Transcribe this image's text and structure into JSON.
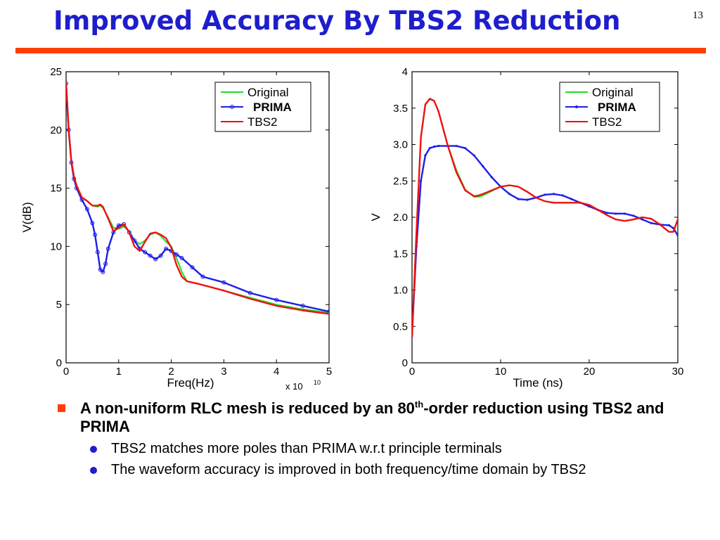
{
  "slide": {
    "title": "Improved Accuracy By TBS2 Reduction",
    "number": "13",
    "accent_color": "#ff3d00",
    "title_color": "#1e1ecc"
  },
  "bullets": {
    "main_pre": "A non-uniform RLC mesh is reduced by an 80",
    "main_sup": "th",
    "main_post": "-order reduction using TBS2 and PRIMA",
    "sub": [
      "TBS2 matches more poles than PRIMA w.r.t principle terminals",
      "The waveform accuracy is improved in both frequency/time domain by TBS2"
    ]
  },
  "chart_data": [
    {
      "type": "line",
      "title": "",
      "xlabel": "Freq(Hz)",
      "ylabel": "V(dB)",
      "x_multiplier": "x 10",
      "x_multiplier_exp": "10",
      "xlim": [
        0,
        5
      ],
      "ylim": [
        0,
        25
      ],
      "xticks": [
        "0",
        "1",
        "2",
        "3",
        "4",
        "5"
      ],
      "yticks": [
        "0",
        "5",
        "10",
        "15",
        "20",
        "25"
      ],
      "legend_position": "top-right",
      "series": [
        {
          "name": "Original",
          "color": "#22dd22",
          "marker": "none",
          "x": [
            0,
            0.05,
            0.1,
            0.15,
            0.2,
            0.3,
            0.4,
            0.5,
            0.6,
            0.65,
            0.7,
            0.8,
            0.9,
            1.0,
            1.1,
            1.2,
            1.3,
            1.4,
            1.5,
            1.6,
            1.7,
            1.8,
            1.9,
            2.0,
            2.1,
            2.2,
            2.3,
            2.5,
            3.0,
            3.5,
            4.0,
            4.5,
            5.0
          ],
          "y": [
            24,
            20,
            17.3,
            16,
            15.2,
            14.2,
            13.9,
            13.5,
            13.4,
            13.5,
            13.3,
            12.5,
            11.6,
            11.5,
            11.7,
            11.3,
            10.5,
            10.2,
            10.5,
            11.0,
            11.2,
            10.9,
            10.4,
            10.0,
            9.0,
            7.8,
            7.0,
            6.8,
            6.2,
            5.6,
            5.0,
            4.6,
            4.3
          ]
        },
        {
          "name": "PRIMA",
          "color": "#1e1ee6",
          "marker": "circle",
          "x": [
            0,
            0.05,
            0.1,
            0.15,
            0.2,
            0.3,
            0.4,
            0.5,
            0.55,
            0.6,
            0.65,
            0.7,
            0.75,
            0.8,
            0.9,
            1.0,
            1.1,
            1.2,
            1.3,
            1.4,
            1.5,
            1.6,
            1.7,
            1.8,
            1.9,
            2.0,
            2.1,
            2.2,
            2.4,
            2.6,
            3.0,
            3.5,
            4.0,
            4.5,
            5.0
          ],
          "y": [
            24,
            20,
            17.2,
            15.8,
            15.0,
            14.0,
            13.2,
            12.0,
            11.0,
            9.5,
            8.0,
            7.8,
            8.5,
            9.8,
            11.2,
            11.8,
            11.9,
            11.2,
            10.5,
            9.8,
            9.5,
            9.2,
            8.9,
            9.2,
            9.8,
            9.6,
            9.3,
            9.0,
            8.2,
            7.4,
            6.9,
            6.0,
            5.4,
            4.9,
            4.4
          ]
        },
        {
          "name": "TBS2",
          "color": "#ee1111",
          "marker": "none",
          "x": [
            0,
            0.05,
            0.1,
            0.15,
            0.2,
            0.3,
            0.4,
            0.5,
            0.6,
            0.65,
            0.7,
            0.8,
            0.9,
            1.0,
            1.1,
            1.2,
            1.3,
            1.4,
            1.5,
            1.6,
            1.7,
            1.8,
            1.9,
            2.0,
            2.1,
            2.2,
            2.3,
            2.5,
            3.0,
            3.5,
            4.0,
            4.5,
            5.0
          ],
          "y": [
            24,
            20,
            17.3,
            16,
            15.2,
            14.2,
            13.9,
            13.5,
            13.5,
            13.6,
            13.4,
            12.4,
            11.3,
            11.6,
            11.9,
            11.2,
            10.0,
            9.6,
            10.4,
            11.1,
            11.2,
            11.0,
            10.7,
            9.9,
            8.4,
            7.4,
            7.0,
            6.8,
            6.2,
            5.5,
            4.9,
            4.5,
            4.2
          ]
        }
      ]
    },
    {
      "type": "line",
      "title": "",
      "xlabel": "Time (ns)",
      "ylabel": "V",
      "xlim": [
        0,
        30
      ],
      "ylim": [
        0,
        4
      ],
      "xticks": [
        "0",
        "10",
        "20",
        "30"
      ],
      "yticks": [
        "0",
        "0.5",
        "1.0",
        "1.5",
        "2.0",
        "2.5",
        "3.0",
        "3.5",
        "4"
      ],
      "legend_position": "top-right",
      "series": [
        {
          "name": "Original",
          "color": "#22dd22",
          "marker": "none",
          "x": [
            0,
            0.5,
            1,
            1.5,
            2,
            2.5,
            3,
            4,
            5,
            6,
            7,
            7.5,
            8,
            9,
            10,
            11,
            12,
            13,
            14,
            15,
            16,
            17,
            18,
            19,
            20,
            21,
            22,
            23,
            24,
            25,
            26,
            27,
            28,
            29,
            29.5,
            30
          ],
          "y": [
            0.35,
            1.8,
            3.1,
            3.55,
            3.62,
            3.6,
            3.45,
            3.0,
            2.65,
            2.38,
            2.28,
            2.28,
            2.3,
            2.36,
            2.42,
            2.44,
            2.42,
            2.35,
            2.27,
            2.22,
            2.2,
            2.2,
            2.2,
            2.2,
            2.17,
            2.1,
            2.03,
            1.97,
            1.95,
            1.97,
            2.0,
            1.98,
            1.9,
            1.8,
            1.8,
            1.97
          ]
        },
        {
          "name": "PRIMA",
          "color": "#1e1ee6",
          "marker": "dot",
          "x": [
            0,
            0.5,
            1,
            1.5,
            2,
            2.5,
            3,
            4,
            5,
            6,
            7,
            8,
            9,
            10,
            11,
            12,
            13,
            14,
            15,
            16,
            17,
            18,
            19,
            20,
            21,
            22,
            23,
            24,
            25,
            26,
            27,
            28,
            29,
            29.5,
            30
          ],
          "y": [
            0.4,
            1.6,
            2.5,
            2.85,
            2.95,
            2.97,
            2.98,
            2.98,
            2.98,
            2.95,
            2.85,
            2.7,
            2.55,
            2.42,
            2.32,
            2.25,
            2.24,
            2.27,
            2.31,
            2.32,
            2.3,
            2.25,
            2.2,
            2.15,
            2.1,
            2.06,
            2.05,
            2.05,
            2.02,
            1.97,
            1.92,
            1.9,
            1.89,
            1.85,
            1.75
          ]
        },
        {
          "name": "TBS2",
          "color": "#ee1111",
          "marker": "none",
          "x": [
            0,
            0.5,
            1,
            1.5,
            2,
            2.5,
            3,
            4,
            5,
            6,
            7,
            7.5,
            8,
            9,
            10,
            11,
            12,
            13,
            14,
            15,
            16,
            17,
            18,
            19,
            20,
            21,
            22,
            23,
            24,
            25,
            26,
            27,
            28,
            29,
            29.5,
            30
          ],
          "y": [
            0.35,
            1.8,
            3.1,
            3.55,
            3.63,
            3.6,
            3.45,
            3.0,
            2.62,
            2.37,
            2.29,
            2.3,
            2.32,
            2.37,
            2.42,
            2.44,
            2.42,
            2.35,
            2.27,
            2.22,
            2.2,
            2.2,
            2.2,
            2.2,
            2.17,
            2.1,
            2.03,
            1.97,
            1.95,
            1.97,
            2.0,
            1.98,
            1.9,
            1.8,
            1.8,
            1.97
          ]
        }
      ]
    }
  ]
}
